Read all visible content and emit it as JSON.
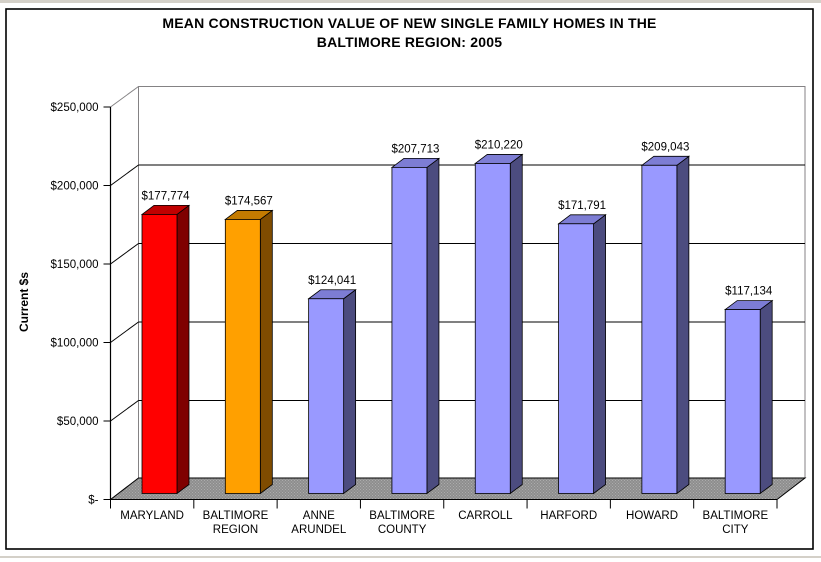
{
  "window": {
    "background": "#FFFFFF",
    "chart_border_color": "#000000",
    "frame_edge_color": "#D4D0C8"
  },
  "chart_data": {
    "type": "bar",
    "style": "3d-column",
    "title_lines": [
      "MEAN CONSTRUCTION VALUE OF NEW SINGLE FAMILY HOMES IN THE",
      "BALTIMORE REGION:  2005"
    ],
    "ylabel": "Current $s",
    "xlabel": "",
    "categories": [
      "MARYLAND",
      "BALTIMORE REGION",
      "ANNE ARUNDEL",
      "BALTIMORE COUNTY",
      "CARROLL",
      "HARFORD",
      "HOWARD",
      "BALTIMORE CITY"
    ],
    "values": [
      177774,
      174567,
      124041,
      207713,
      210220,
      171791,
      209043,
      117134
    ],
    "data_labels": [
      "$177,774",
      "$174,567",
      "$124,041",
      "$207,713",
      "$210,220",
      "$171,791",
      "$209,043",
      "$117,134"
    ],
    "y_ticks": [
      {
        "label": "$250,000",
        "value": 250000
      },
      {
        "label": "$200,000",
        "value": 200000
      },
      {
        "label": "$150,000",
        "value": 150000
      },
      {
        "label": "$100,000",
        "value": 100000
      },
      {
        "label": "$50,000",
        "value": 50000
      },
      {
        "label": "$-",
        "value": 0
      }
    ],
    "ylim": [
      0,
      250000
    ],
    "grid": true,
    "legend": false,
    "bar_colors": [
      {
        "front": "#FF0000",
        "top": "#C00000",
        "side": "#7F0000"
      },
      {
        "front": "#FFA000",
        "top": "#C47B00",
        "side": "#7F4C00"
      },
      {
        "front": "#9999FF",
        "top": "#7D7DD4",
        "side": "#4C4C7F"
      },
      {
        "front": "#9999FF",
        "top": "#7D7DD4",
        "side": "#4C4C7F"
      },
      {
        "front": "#9999FF",
        "top": "#7D7DD4",
        "side": "#4C4C7F"
      },
      {
        "front": "#9999FF",
        "top": "#7D7DD4",
        "side": "#4C4C7F"
      },
      {
        "front": "#9999FF",
        "top": "#7D7DD4",
        "side": "#4C4C7F"
      },
      {
        "front": "#9999FF",
        "top": "#7D7DD4",
        "side": "#4C4C7F"
      }
    ],
    "colors": {
      "wall": "#FFFFFF",
      "wall_edge": "#848284",
      "gridline": "#000000",
      "axis": "#000000",
      "bar_outline": "#000000",
      "floor_base": "#8E8E8E",
      "floor_dot": "#ACACAC",
      "text": "#000000"
    }
  }
}
